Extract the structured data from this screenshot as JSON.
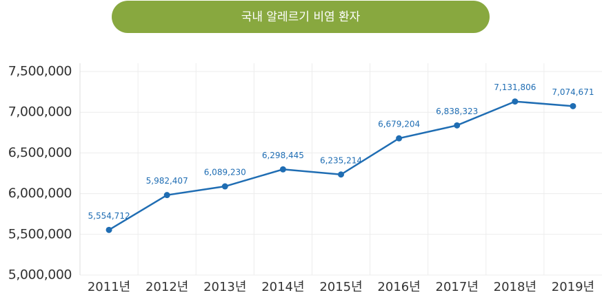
{
  "chart_data": {
    "type": "line",
    "title": "국내 알레르기 비염 환자",
    "categories": [
      "2011년",
      "2012년",
      "2013년",
      "2014년",
      "2015년",
      "2016년",
      "2017년",
      "2018년",
      "2019년"
    ],
    "values": [
      5554712,
      5982407,
      6089230,
      6298445,
      6235214,
      6679204,
      6838323,
      7131806,
      7074671
    ],
    "value_labels": [
      "5,554,712",
      "5,982,407",
      "6,089,230",
      "6,298,445",
      "6,235,214",
      "6,679,204",
      "6,838,323",
      "7,131,806",
      "7,074,671"
    ],
    "color": "#1f6db3",
    "ylim": [
      5000000,
      7500000
    ],
    "yticks": [
      {
        "value": 5000000,
        "label": "5,000,000"
      },
      {
        "value": 5500000,
        "label": "5,500,000"
      },
      {
        "value": 6000000,
        "label": "6,000,000"
      },
      {
        "value": 6500000,
        "label": "6,500,000"
      },
      {
        "value": 7000000,
        "label": "7,000,000"
      },
      {
        "value": 7500000,
        "label": "7,500,000"
      }
    ],
    "grid": true
  }
}
